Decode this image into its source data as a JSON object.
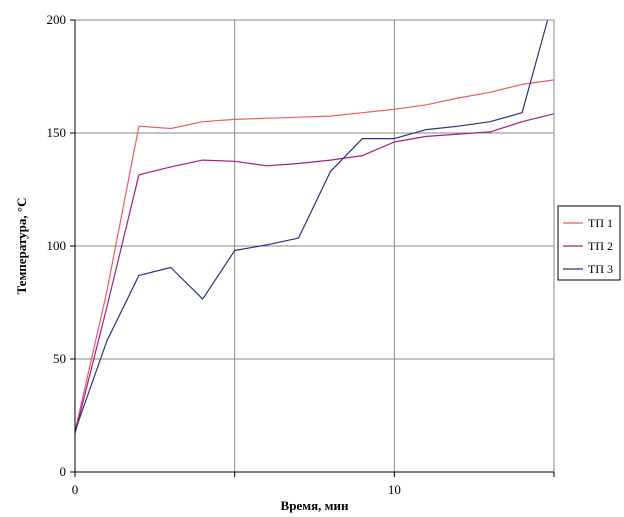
{
  "chart_data": {
    "type": "line",
    "title": "",
    "xlabel": "Время, мин",
    "ylabel": "Температура, °С",
    "xlim": [
      0,
      15
    ],
    "ylim": [
      0,
      200
    ],
    "x_ticks": [
      0,
      10
    ],
    "x_gridlines": [
      5,
      10
    ],
    "y_ticks": [
      0,
      50,
      100,
      150,
      200
    ],
    "grid": true,
    "legend_position": "right",
    "series": [
      {
        "name": "ТП 1",
        "color": "#ee5a64",
        "x": [
          0,
          1,
          2,
          3,
          4,
          5,
          6,
          7,
          8,
          9,
          10,
          11,
          12,
          13,
          14,
          15
        ],
        "y": [
          18,
          80,
          153,
          152,
          155,
          156,
          156.5,
          157,
          157.5,
          159,
          160.5,
          162.5,
          165.5,
          168,
          171.5,
          173.5
        ]
      },
      {
        "name": "ТП 2",
        "color": "#a0207e",
        "x": [
          0,
          1,
          2,
          3,
          4,
          5,
          6,
          7,
          8,
          9,
          10,
          11,
          12,
          13,
          14,
          15
        ],
        "y": [
          17,
          73,
          131.5,
          135,
          138,
          137.5,
          135.5,
          136.5,
          138,
          140,
          146,
          148.5,
          149.5,
          150.5,
          155,
          158.5
        ]
      },
      {
        "name": "ТП 3",
        "color": "#2a3282",
        "x": [
          0,
          1,
          2,
          3,
          4,
          5,
          6,
          7,
          8,
          9,
          10,
          11,
          12,
          13,
          14,
          14.8
        ],
        "y": [
          18,
          58,
          87,
          90.5,
          76.5,
          98,
          100.5,
          103.5,
          133,
          147.5,
          147.5,
          151.5,
          153,
          155,
          159,
          200
        ]
      }
    ]
  }
}
